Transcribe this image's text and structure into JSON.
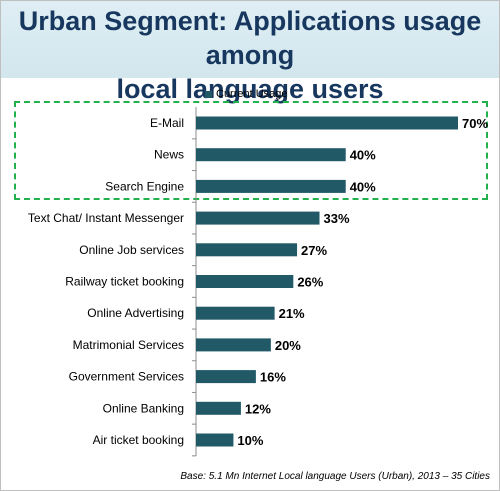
{
  "chart_data": {
    "type": "bar",
    "orientation": "horizontal",
    "title_lines": [
      "Urban Segment: Applications usage among",
      "local language users"
    ],
    "legend": [
      "Current Usage"
    ],
    "categories": [
      "E-Mail",
      "News",
      "Search Engine",
      "Text Chat/ Instant Messenger",
      "Online Job services",
      "Railway ticket booking",
      "Online Advertising",
      "Matrimonial Services",
      "Government Services",
      "Online Banking",
      "Air ticket booking"
    ],
    "series": [
      {
        "name": "Current Usage",
        "values": [
          70,
          40,
          40,
          33,
          27,
          26,
          21,
          20,
          16,
          12,
          10
        ],
        "labels": [
          "70%",
          "40%",
          "40%",
          "33%",
          "27%",
          "26%",
          "21%",
          "20%",
          "16%",
          "12%",
          "10%"
        ]
      }
    ],
    "xlim": [
      0,
      70
    ],
    "highlighted_categories": [
      "E-Mail",
      "News",
      "Search Engine"
    ],
    "footnote": "Base: 5.1 Mn Internet  Local language Users (Urban), 2013 – 35 Cities"
  },
  "colors": {
    "bar": "#215967",
    "title": "#17375e",
    "highlight_border": "#22b14c"
  }
}
